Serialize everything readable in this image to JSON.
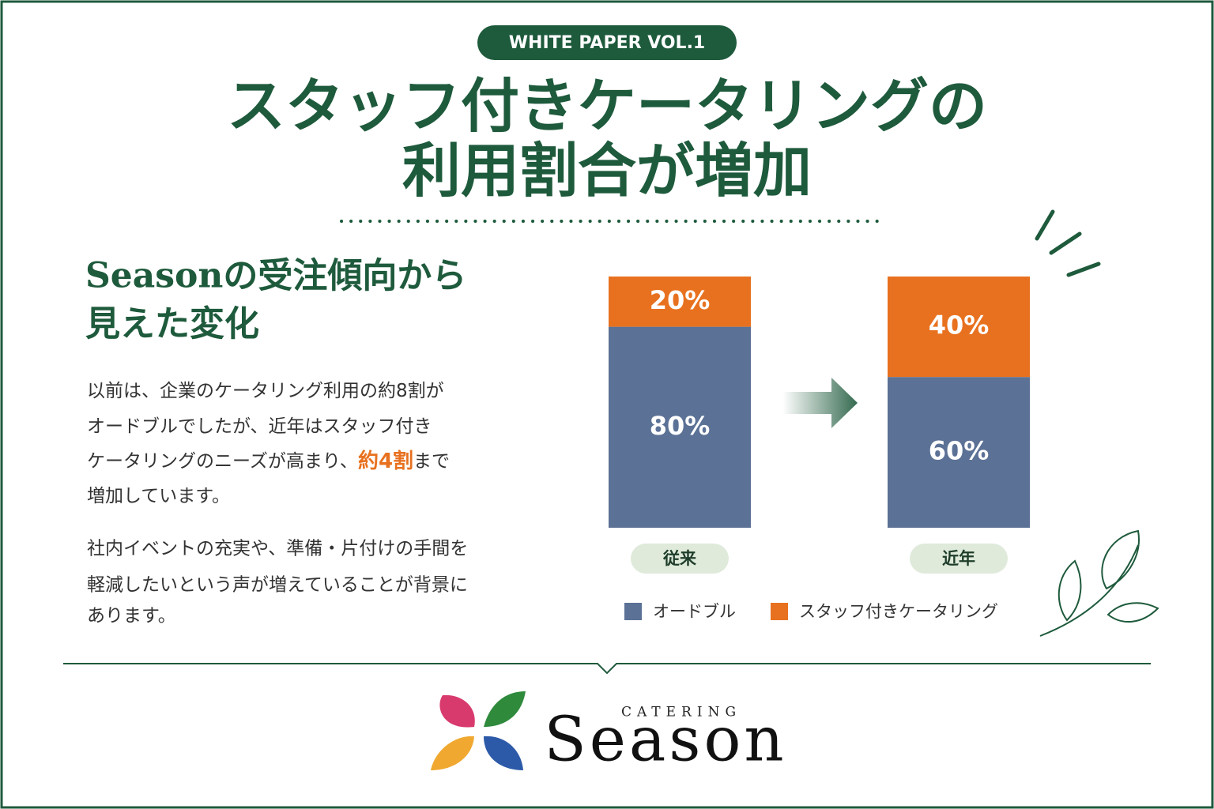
{
  "header": {
    "badge": "WHITE PAPER VOL.1",
    "title_lines": [
      "スタッフ付きケータリングの",
      "利用割合が増加"
    ]
  },
  "body": {
    "heading_lines": [
      "Seasonの受注傾向から",
      "見えた変化"
    ],
    "paragraph1": [
      [
        "以前は、企業のケータリング利用の約8割が"
      ],
      [
        "オードブルでしたが、近年はスタッフ付き"
      ],
      [
        "ケータリングのニーズが高まり、",
        "約4割",
        "まで"
      ],
      [
        "増加しています。"
      ]
    ],
    "paragraph2": [
      "社内イベントの充実や、準備・片付けの手間を",
      "軽減したいという声が増えていることが背景に",
      "あります。"
    ]
  },
  "chart_data": {
    "type": "bar",
    "stacked": true,
    "categories": [
      "従来",
      "近年"
    ],
    "series": [
      {
        "name": "オードブル",
        "color": "#5b7196",
        "values": [
          80,
          60
        ],
        "value_labels": [
          "80%",
          "60%"
        ]
      },
      {
        "name": "スタッフ付きケータリング",
        "color": "#e8711f",
        "values": [
          20,
          40
        ],
        "value_labels": [
          "20%",
          "40%"
        ]
      }
    ],
    "ylim": [
      0,
      100
    ]
  },
  "logo": {
    "sub": "CATERING",
    "name": "Season"
  }
}
